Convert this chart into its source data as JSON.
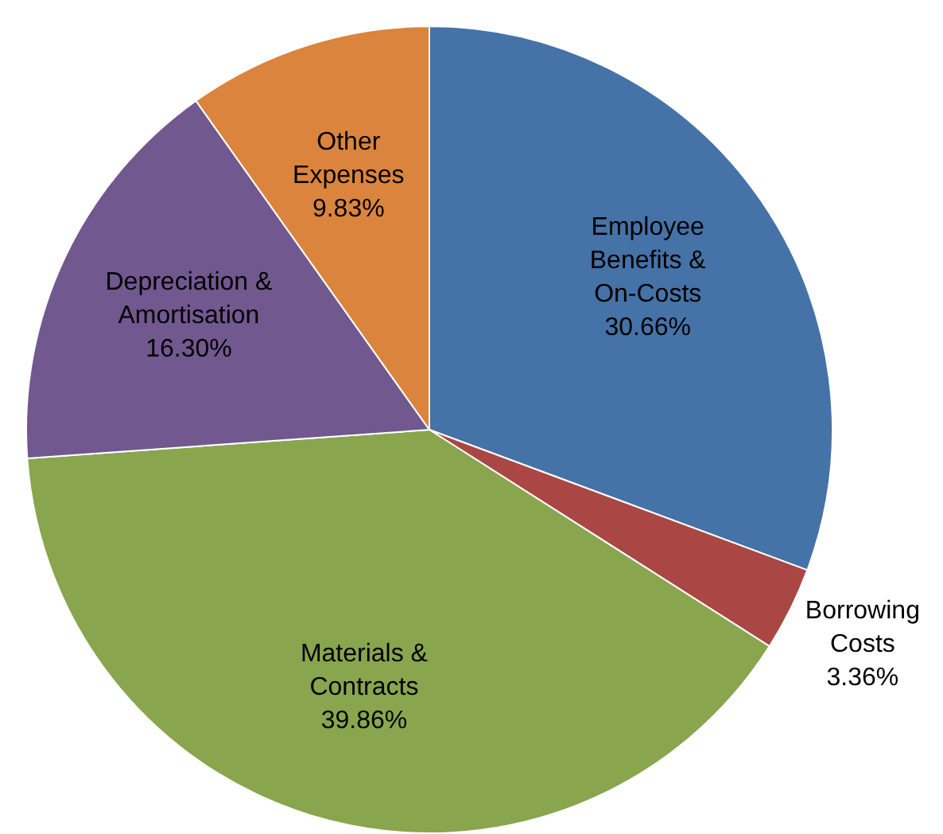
{
  "chart_data": {
    "type": "pie",
    "categories": [
      "Employee Benefits & On-Costs",
      "Borrowing Costs",
      "Materials & Contracts",
      "Depreciation & Amortisation",
      "Other Expenses"
    ],
    "values": [
      30.66,
      3.36,
      39.86,
      16.3,
      9.83
    ],
    "value_labels": [
      "30.66%",
      "3.36%",
      "39.86%",
      "16.30%",
      "9.83%"
    ],
    "colors": [
      "#4572a7",
      "#aa4643",
      "#89a54e",
      "#71588f",
      "#db843d"
    ],
    "legend": false
  }
}
